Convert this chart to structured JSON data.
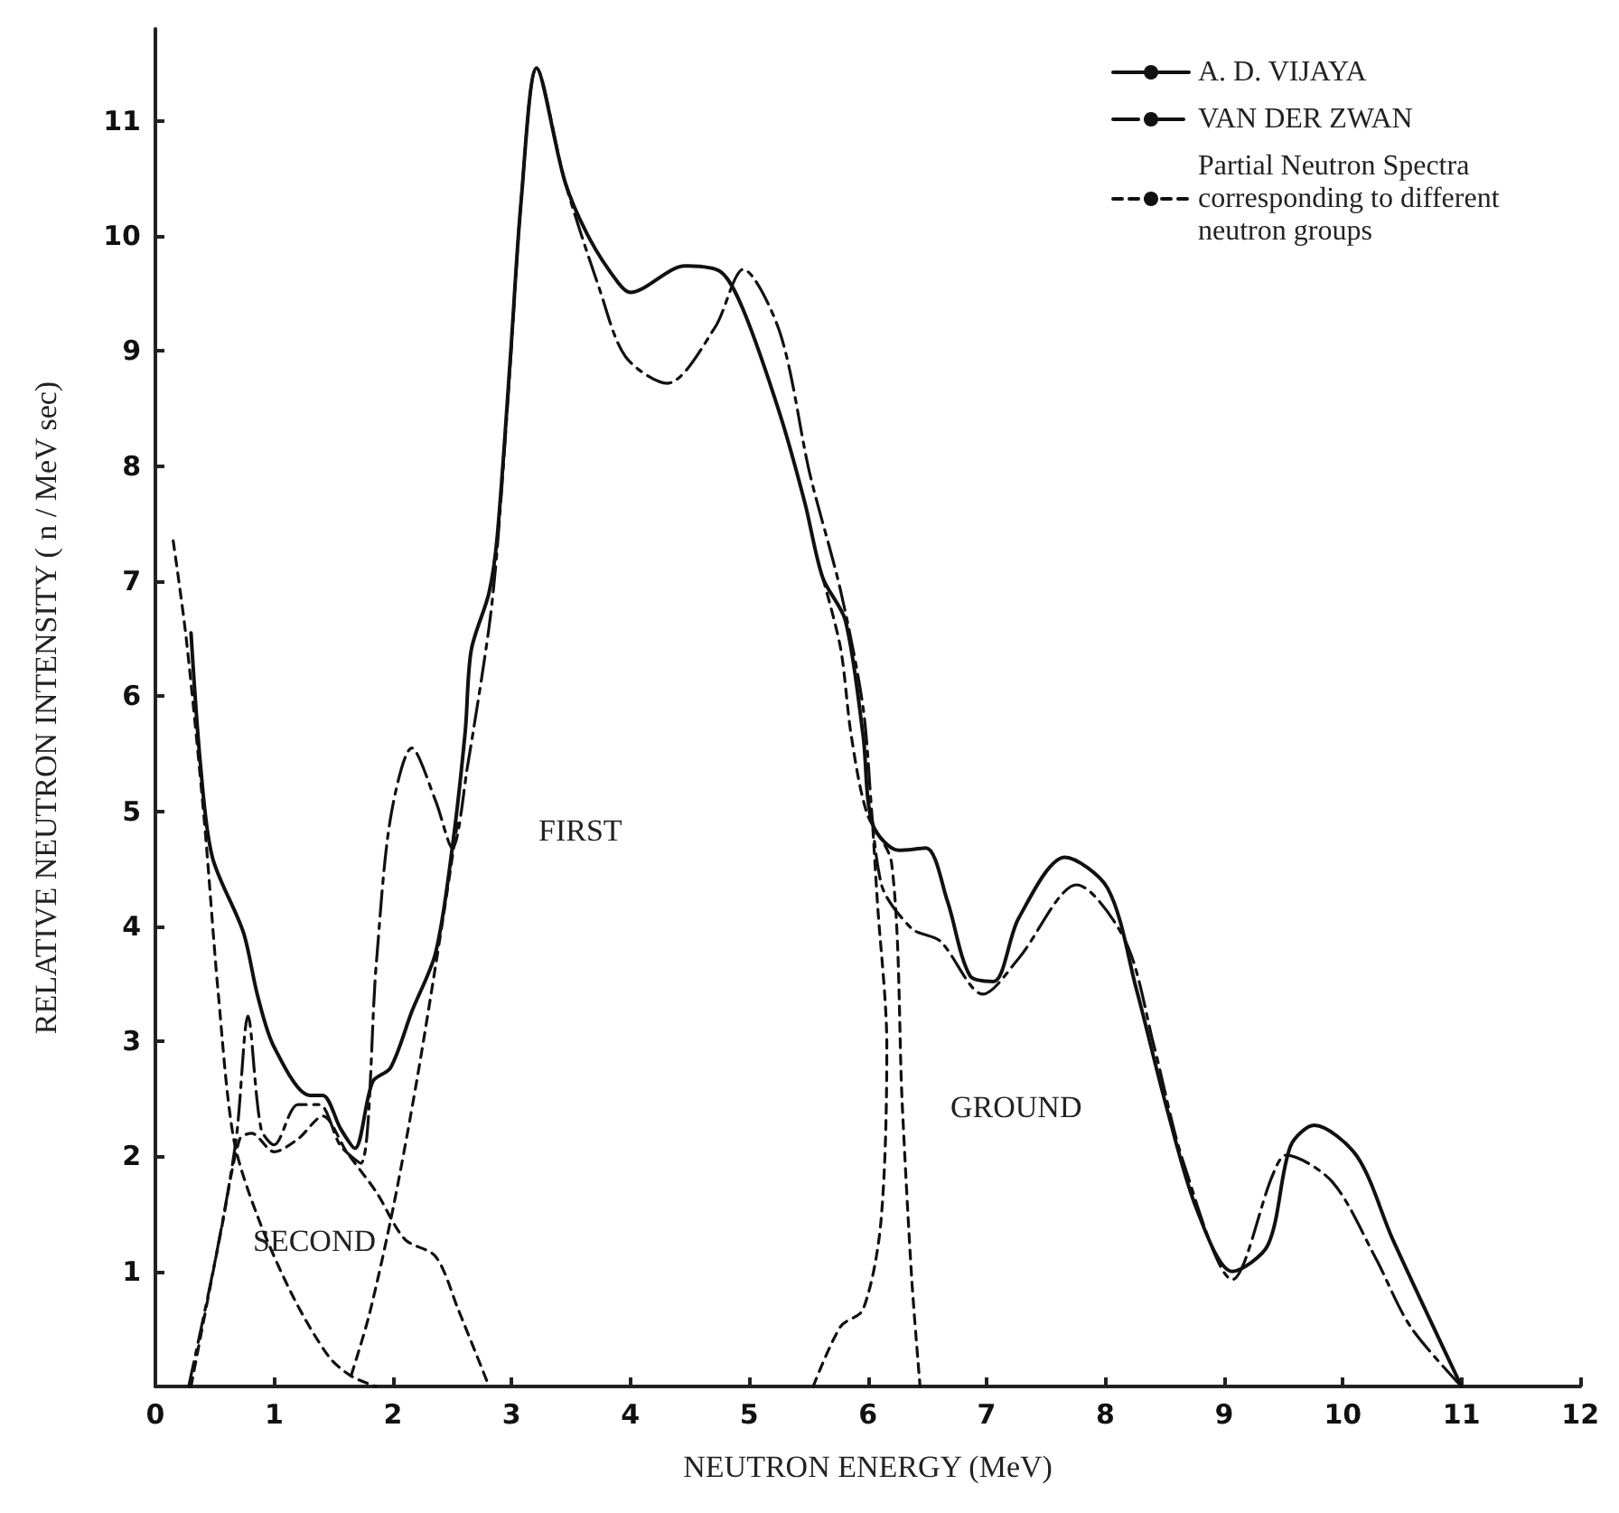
{
  "chart_data": {
    "type": "line",
    "xlabel": "NEUTRON ENERGY (MeV)",
    "ylabel": "RELATIVE NEUTRON INTENSITY ( n / MeV sec)",
    "xlim": [
      0,
      12
    ],
    "xticks": [
      0,
      1,
      2,
      3,
      4,
      5,
      6,
      7,
      8,
      9,
      10,
      11,
      12
    ],
    "ylim": [
      0,
      11.8
    ],
    "yticks": [
      1,
      2,
      3,
      4,
      5,
      6,
      7,
      8,
      9,
      10,
      11
    ],
    "grid": false,
    "legend": "top right",
    "marker": "none",
    "annotations": [
      "SECOND",
      "FIRST",
      "GROUND"
    ],
    "series": [
      {
        "name": "A. D. VIJAYA",
        "color": "#111111",
        "line_style": "solid",
        "x": [
          0.3,
          0.38,
          0.48,
          0.74,
          0.86,
          1.0,
          1.3,
          1.41,
          1.56,
          1.68,
          1.83,
          1.98,
          2.16,
          2.36,
          2.5,
          2.61,
          2.66,
          2.81,
          2.88,
          2.99,
          3.08,
          3.21,
          3.45,
          3.66,
          3.9,
          4.0,
          4.46,
          4.76,
          4.95,
          5.26,
          5.47,
          5.62,
          5.81,
          5.96,
          6.04,
          6.26,
          6.49,
          6.67,
          6.86,
          7.06,
          7.27,
          7.66,
          8.02,
          8.26,
          8.51,
          8.77,
          9.07,
          9.37,
          9.56,
          9.76,
          10.12,
          10.42,
          11.0
        ],
        "values": [
          6.55,
          5.4,
          4.6,
          3.95,
          3.4,
          2.95,
          2.53,
          2.53,
          2.24,
          2.07,
          2.65,
          2.77,
          3.26,
          3.77,
          4.68,
          5.7,
          6.4,
          6.9,
          7.4,
          8.95,
          10.3,
          11.46,
          10.47,
          9.97,
          9.59,
          9.51,
          9.74,
          9.69,
          9.36,
          8.45,
          7.68,
          7.03,
          6.66,
          5.66,
          4.89,
          4.66,
          4.68,
          4.22,
          3.57,
          3.52,
          4.07,
          4.6,
          4.33,
          3.46,
          2.45,
          1.54,
          1.0,
          1.23,
          2.09,
          2.27,
          2.0,
          1.28,
          0
        ]
      },
      {
        "name": "VAN DER ZWAN",
        "color": "#111111",
        "line_style": "dashed",
        "x": [
          0.28,
          0.51,
          0.68,
          0.78,
          0.89,
          1.0,
          1.2,
          1.38,
          1.56,
          1.73,
          1.86,
          1.98,
          2.16,
          2.36,
          2.5,
          2.63,
          2.81,
          2.88,
          2.99,
          3.08,
          3.21,
          3.45,
          3.74,
          3.96,
          4.31,
          4.71,
          4.95,
          5.26,
          5.51,
          5.77,
          5.96,
          6.11,
          6.37,
          6.61,
          6.97,
          7.27,
          7.76,
          8.17,
          8.41,
          8.66,
          9.07,
          9.41,
          9.52,
          9.91,
          10.27,
          10.57,
          11.0
        ],
        "values": [
          0,
          1.13,
          2.15,
          3.22,
          2.24,
          2.1,
          2.45,
          2.45,
          2.09,
          1.94,
          3.67,
          4.94,
          5.55,
          5.09,
          4.68,
          5.4,
          6.6,
          7.3,
          8.9,
          10.3,
          11.46,
          10.47,
          9.54,
          8.95,
          8.72,
          9.2,
          9.71,
          9.16,
          7.94,
          6.92,
          5.9,
          4.38,
          3.98,
          3.87,
          3.41,
          3.72,
          4.36,
          3.87,
          2.96,
          1.94,
          0.93,
          1.84,
          2.01,
          1.78,
          1.13,
          0.52,
          0
        ]
      },
      {
        "name": "Partial Neutron Spectra corresponding to different neutron groups",
        "color": "#111111",
        "line_style": "dotted",
        "x": [
          0.15,
          0.26,
          0.41,
          0.53,
          0.66,
          0.86,
          1.16,
          1.46,
          1.65,
          1.86
        ],
        "values": [
          7.35,
          6.5,
          4.94,
          3.41,
          2.15,
          1.48,
          0.78,
          0.26,
          0.09,
          0
        ]
      },
      {
        "color": "#111111",
        "line_style": "dotted",
        "x": [
          0.3,
          0.56,
          0.71,
          0.81,
          1.0,
          1.2,
          1.41,
          1.61,
          1.86,
          2.1,
          2.36,
          2.55,
          2.81
        ],
        "values": [
          0,
          1.39,
          2.15,
          2.2,
          2.04,
          2.15,
          2.35,
          2.04,
          1.69,
          1.28,
          1.13,
          0.67,
          0
        ]
      },
      {
        "color": "#111111",
        "line_style": "dotted",
        "x": [
          1.65,
          1.8,
          2.0,
          2.2,
          2.4,
          2.55,
          2.6,
          5.62,
          5.77,
          5.86,
          5.99,
          6.2,
          6.29,
          6.37,
          6.44
        ],
        "values": [
          0.1,
          0.62,
          1.54,
          2.65,
          3.92,
          4.94,
          null,
          7.03,
          6.42,
          5.66,
          4.99,
          4.55,
          2.45,
          0.93,
          0
        ]
      },
      {
        "color": "#111111",
        "line_style": "dotted",
        "x": [
          5.54,
          5.77,
          5.96,
          6.11,
          6.16,
          6.08,
          6.04
        ],
        "values": [
          0,
          0.52,
          0.67,
          1.43,
          2.96,
          4.22,
          4.89
        ]
      }
    ]
  }
}
